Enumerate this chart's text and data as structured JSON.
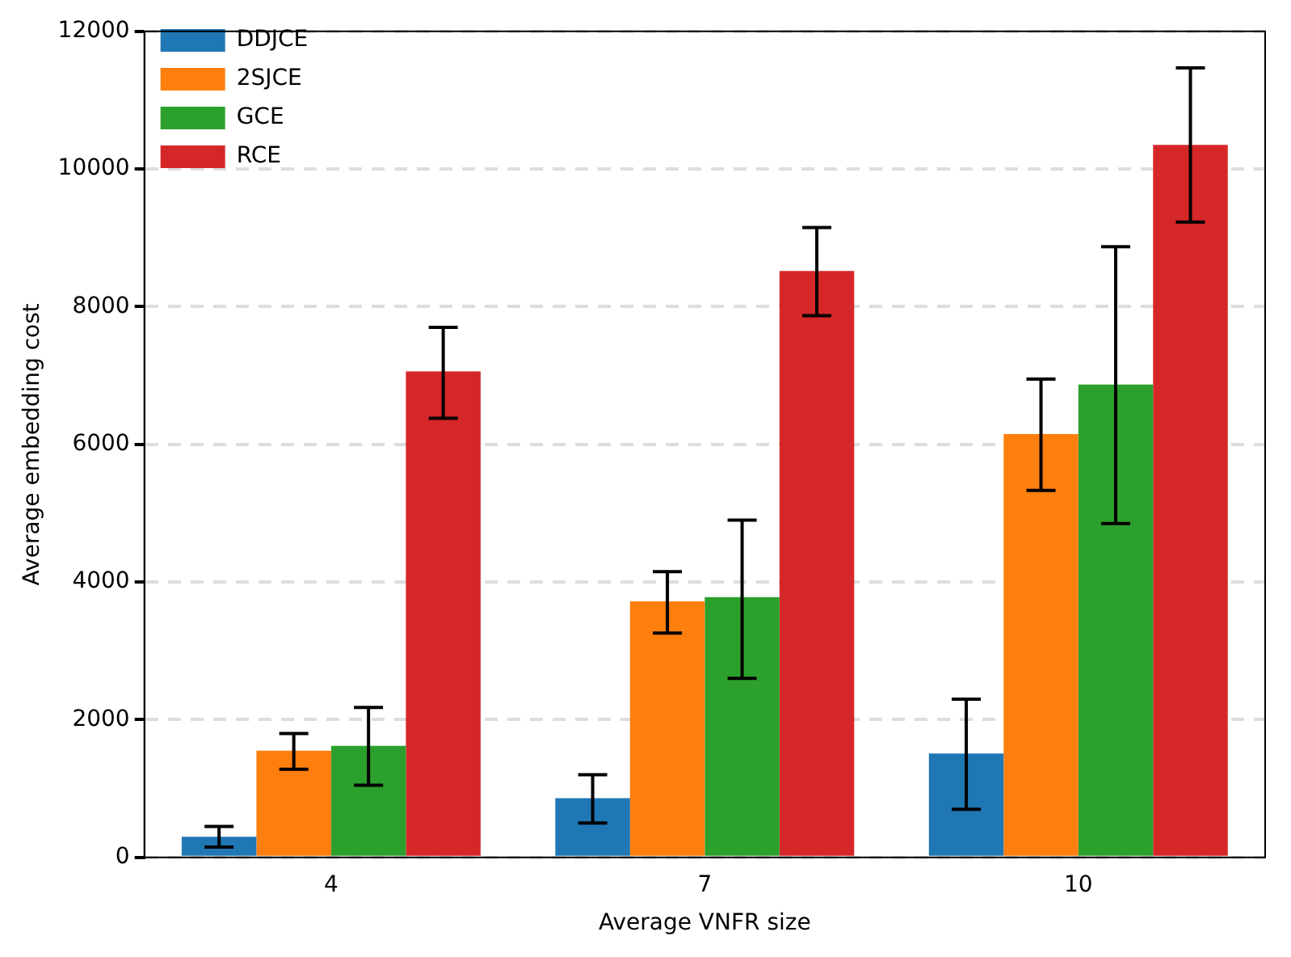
{
  "chart_data": {
    "type": "bar",
    "xlabel": "Average VNFR size",
    "ylabel": "Average embedding cost",
    "categories": [
      "4",
      "7",
      "10"
    ],
    "series": [
      {
        "name": "DDJCE",
        "color": "#1f77b4",
        "values": [
          300,
          860,
          1510
        ],
        "errors": [
          [
            150,
            450
          ],
          [
            500,
            1200
          ],
          [
            700,
            2300
          ]
        ]
      },
      {
        "name": "2SJCE",
        "color": "#ff7f0e",
        "values": [
          1550,
          3720,
          6150
        ],
        "errors": [
          [
            1280,
            1800
          ],
          [
            3260,
            4150
          ],
          [
            5330,
            6950
          ]
        ]
      },
      {
        "name": "GCE",
        "color": "#2ca02c",
        "values": [
          1620,
          3780,
          6870
        ],
        "errors": [
          [
            1050,
            2180
          ],
          [
            2600,
            4900
          ],
          [
            4850,
            8870
          ]
        ]
      },
      {
        "name": "RCE",
        "color": "#d62728",
        "values": [
          7060,
          8520,
          10350
        ],
        "errors": [
          [
            6380,
            7700
          ],
          [
            7870,
            9150
          ],
          [
            9230,
            11470
          ]
        ]
      }
    ],
    "ylim": [
      0,
      12000
    ],
    "yticks": [
      0,
      2000,
      4000,
      6000,
      8000,
      10000,
      12000
    ],
    "grid": "y",
    "legend": "top left"
  }
}
